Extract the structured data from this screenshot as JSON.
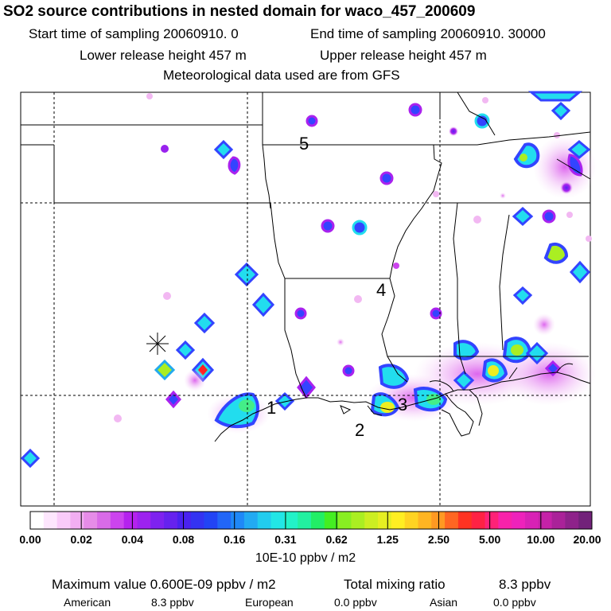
{
  "title": "SO2 source contributions in nested domain for waco_457_200609",
  "start_label": "Start time of sampling 20060910.    0",
  "end_label": "End time of sampling 20060910. 30000",
  "lower_label": "Lower release height  457 m",
  "upper_label": "Upper release height  457 m",
  "met_label": "Meteorological data used are from GFS",
  "regions": [
    "1",
    "2",
    "3",
    "4",
    "5"
  ],
  "colorbar": {
    "ticks": [
      "0.00",
      "0.02",
      "0.04",
      "0.08",
      "0.16",
      "0.31",
      "0.62",
      "1.25",
      "2.50",
      "5.00",
      "10.00",
      "20.00"
    ],
    "colors": [
      "#ffffff",
      "#fde6fd",
      "#f9cbf9",
      "#f2aef2",
      "#e68ce8",
      "#d96be8",
      "#cc44ee",
      "#b522ee",
      "#9d22ef",
      "#7e22ef",
      "#6622ee",
      "#4a22ef",
      "#3333f2",
      "#2244f5",
      "#2266f7",
      "#1f88f7",
      "#22aaf2",
      "#22ccee",
      "#22e6e6",
      "#22f2c8",
      "#22f0a0",
      "#22ee66",
      "#44ee22",
      "#88ee22",
      "#aaee22",
      "#ccee22",
      "#e6ee22",
      "#ffee22",
      "#ffd322",
      "#ffb522",
      "#ff9922",
      "#ff6622",
      "#ff3322",
      "#ff2244",
      "#ff2277",
      "#f822aa",
      "#ee22bb",
      "#d822b5",
      "#c522a8",
      "#aa2299",
      "#8e228a",
      "#72227a"
    ],
    "units": "10E-10 ppbv / m2"
  },
  "stats": {
    "max_label": "Maximum value  0.600E-09 ppbv / m2",
    "total_label": "Total mixing ratio",
    "total_value": "8.3 ppbv"
  },
  "sources": [
    {
      "name": "American",
      "value": "8.3 ppbv"
    },
    {
      "name": "European",
      "value": "0.0 ppbv"
    },
    {
      "name": "Asian",
      "value": "0.0 ppbv"
    }
  ],
  "colors": {
    "magenta_light": "#f2b8f2",
    "magenta": "#dd66ee",
    "purple": "#9922ee",
    "blue": "#3344ff",
    "cyan": "#22ddee",
    "green": "#44ee88",
    "yellow": "#eeee22",
    "red": "#ff2222"
  }
}
